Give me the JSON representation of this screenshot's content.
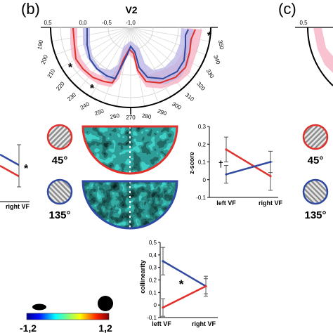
{
  "panel_labels": {
    "b": "(b)",
    "c": "(c)"
  },
  "polar": {
    "title": "V2",
    "radial_ticks": [
      "0,5",
      "0,0",
      "-0,5",
      "-1,0"
    ],
    "angle_labels": [
      "190",
      "200",
      "210",
      "220",
      "230",
      "240",
      "250",
      "260",
      "270",
      "280",
      "290",
      "300",
      "310",
      "320",
      "330",
      "340",
      "350"
    ],
    "asterisk": "*"
  },
  "orientation_labels": {
    "deg45": "45°",
    "deg135": "135°"
  },
  "zscore_plot": {
    "ylabel": "z-score",
    "yticks": [
      "0,3",
      "0,2",
      "0,1",
      "0",
      "-0,1"
    ],
    "xticks": [
      "left VF",
      "right VF"
    ],
    "marker": "†"
  },
  "collinearity_plot": {
    "ylabel": "collinearity",
    "yticks": [
      "0,5",
      "0,4",
      "0,3",
      "0,2",
      "0,1",
      "0",
      "-0,1"
    ],
    "xticks": [
      "left VF",
      "right VF"
    ],
    "marker": "*"
  },
  "left_partial": {
    "xtick": "right VF",
    "marker": "*"
  },
  "right_partial": {
    "ytick": "0,5",
    "deg45": "45°",
    "deg135": "135°"
  },
  "colorbar": {
    "min_label": "-1,2",
    "max_label": "1,2"
  },
  "colors": {
    "red": "#e0312c",
    "blue": "#2f4aa0",
    "red_band": "#f6b3c4",
    "blue_band": "#b9b4e6"
  },
  "chart_data": [
    {
      "type": "line",
      "title": "",
      "ylabel": "z-score",
      "ylim": [
        -0.1,
        0.3
      ],
      "categories": [
        "left VF",
        "right VF"
      ],
      "series": [
        {
          "color": "#e0312c",
          "values": [
            0.17,
            0.02
          ],
          "err": [
            0.07,
            0.08
          ]
        },
        {
          "color": "#2f4aa0",
          "values": [
            0.03,
            0.1
          ],
          "err": [
            0.05,
            0.06
          ]
        }
      ]
    },
    {
      "type": "line",
      "title": "",
      "ylabel": "collinearity",
      "ylim": [
        -0.1,
        0.5
      ],
      "categories": [
        "left VF",
        "right VF"
      ],
      "series": [
        {
          "color": "#2f4aa0",
          "values": [
            0.35,
            0.15
          ],
          "err": [
            0.11,
            0.08
          ]
        },
        {
          "color": "#e0312c",
          "values": [
            -0.02,
            0.15
          ],
          "err": [
            0.07,
            0.06
          ]
        }
      ]
    }
  ]
}
